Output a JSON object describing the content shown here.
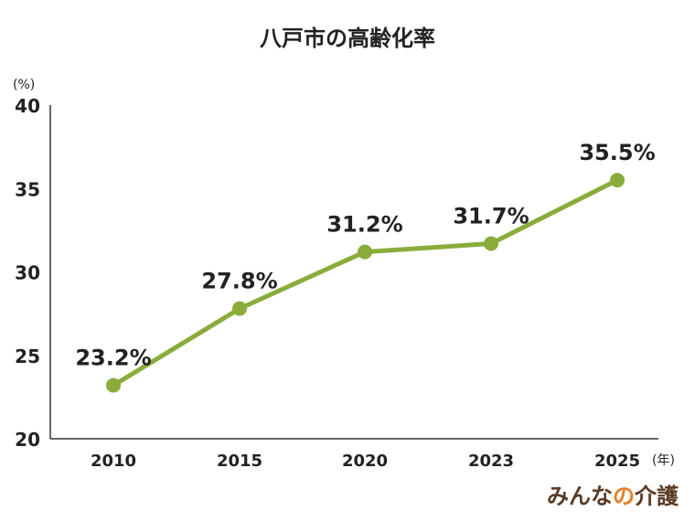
{
  "chart_data": {
    "type": "line",
    "title": "八戸市の高齢化率",
    "y_unit": "(%)",
    "x_unit": "(年)",
    "categories": [
      "2010",
      "2015",
      "2020",
      "2023",
      "2025"
    ],
    "values": [
      23.2,
      27.8,
      31.2,
      31.7,
      35.5
    ],
    "data_labels": [
      "23.2%",
      "27.8%",
      "31.2%",
      "31.7%",
      "35.5%"
    ],
    "ylim": [
      20,
      40
    ],
    "yticks": [
      20,
      25,
      30,
      35,
      40
    ],
    "grid": false,
    "colors": {
      "line": "#8aac3a",
      "axis": "#333333",
      "text": "#222222"
    }
  },
  "brand": {
    "part1": "みんな",
    "part2": "の",
    "part3": "介護",
    "colors": {
      "main": "#5a3a22",
      "accent": "#e67e22"
    }
  }
}
